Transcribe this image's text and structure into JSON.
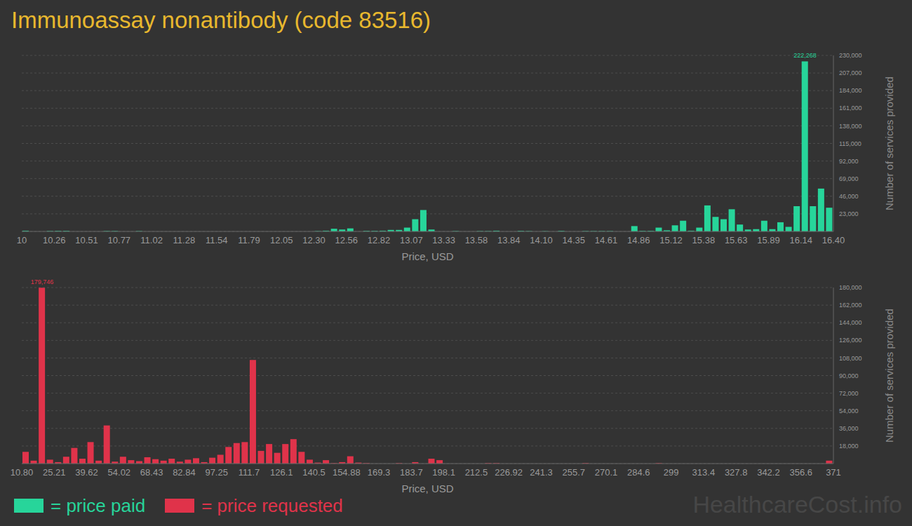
{
  "chart_data": [
    {
      "type": "histogram",
      "title": "Immunoassay nonantibody (code 83516)",
      "x_label": "Price, USD",
      "y_label": "Number of services provided",
      "legend": "bottom left",
      "grid": true,
      "bins": [
        10,
        10.064,
        10.128,
        10.192,
        10.256,
        10.32,
        10.384,
        10.448,
        10.512,
        10.576,
        10.64,
        10.704,
        10.768,
        10.832,
        10.896,
        10.96,
        11.024,
        11.088,
        11.152,
        11.216,
        11.28,
        11.344,
        11.408,
        11.472,
        11.536,
        11.6,
        11.664,
        11.728,
        11.792,
        11.856,
        11.92,
        11.984,
        12.048,
        12.112,
        12.176,
        12.24,
        12.304,
        12.368,
        12.432,
        12.496,
        12.56,
        12.624,
        12.688,
        12.752,
        12.816,
        12.88,
        12.944,
        13.008,
        13.072,
        13.136,
        13.2,
        13.264,
        13.328,
        13.392,
        13.456,
        13.52,
        13.584,
        13.648,
        13.712,
        13.776,
        13.84,
        13.904,
        13.968,
        14.032,
        14.096,
        14.16,
        14.224,
        14.288,
        14.352,
        14.416,
        14.48,
        14.544,
        14.608,
        14.672,
        14.736,
        14.8,
        14.864,
        14.928,
        14.992,
        15.056,
        15.12,
        15.184,
        15.248,
        15.312,
        15.376,
        15.44,
        15.504,
        15.568,
        15.632,
        15.696,
        15.76,
        15.824,
        15.888,
        15.952,
        16.016,
        16.08,
        16.144,
        16.208,
        16.272,
        16.336,
        16.4
      ],
      "series": [
        {
          "name": "= price paid",
          "color": "#27d59a",
          "values": [
            1000,
            0,
            0,
            600,
            800,
            800,
            0,
            0,
            0,
            0,
            600,
            600,
            0,
            0,
            500,
            0,
            0,
            0,
            0,
            0,
            0,
            0,
            0,
            0,
            0,
            0,
            0,
            0,
            0,
            0,
            0,
            0,
            0,
            0,
            0,
            0,
            500,
            1000,
            3500,
            2500,
            4000,
            0,
            800,
            800,
            1000,
            2000,
            2000,
            5000,
            16000,
            28000,
            2500,
            0,
            0,
            500,
            0,
            0,
            500,
            500,
            1000,
            0,
            0,
            800,
            500,
            0,
            400,
            0,
            800,
            0,
            0,
            500,
            500,
            500,
            500,
            0,
            0,
            7000,
            800,
            800,
            5000,
            1500,
            8000,
            14000,
            1000,
            5000,
            34000,
            19000,
            16000,
            29000,
            9000,
            2500,
            3000,
            14000,
            3000,
            12000,
            6000,
            33000,
            222268,
            33000,
            56000,
            31000
          ]
        }
      ],
      "xlim": [
        10,
        16.4
      ],
      "xticks": [
        10,
        {
          "value": 10.256,
          "label": "10.26"
        },
        {
          "value": 10.512,
          "label": "10.51"
        },
        {
          "value": 10.768,
          "label": "10.77"
        },
        {
          "value": 11.024,
          "label": "11.02"
        },
        11.28,
        {
          "value": 11.536,
          "label": "11.54"
        },
        {
          "value": 11.792,
          "label": "11.79"
        },
        {
          "value": 12.048,
          "label": "12.05"
        },
        {
          "value": 12.304,
          "label": "12.30"
        },
        12.56,
        {
          "value": 12.816,
          "label": "12.82"
        },
        {
          "value": 13.072,
          "label": "13.07"
        },
        {
          "value": 13.328,
          "label": "13.33"
        },
        {
          "value": 13.584,
          "label": "13.58"
        },
        13.84,
        {
          "value": 14.096,
          "label": "14.10"
        },
        {
          "value": 14.352,
          "label": "14.35"
        },
        {
          "value": 14.608,
          "label": "14.61"
        },
        {
          "value": 14.864,
          "label": "14.86"
        },
        15.12,
        {
          "value": 15.376,
          "label": "15.38"
        },
        {
          "value": 15.632,
          "label": "15.63"
        },
        {
          "value": 15.888,
          "label": "15.89"
        },
        {
          "value": 16.144,
          "label": "16.14"
        },
        {
          "value": 16.4,
          "label": "16.40"
        }
      ],
      "ylim": [
        0,
        230000
      ],
      "yticks": [
        {
          "value": 23000,
          "label": "23,000"
        },
        {
          "value": 46000,
          "label": "46,000"
        },
        {
          "value": 69000,
          "label": "69,000"
        },
        {
          "value": 92000,
          "label": "92,000"
        },
        {
          "value": 115000,
          "label": "115,000"
        },
        {
          "value": 138000,
          "label": "138,000"
        },
        {
          "value": 161000,
          "label": "161,000"
        },
        {
          "value": 184000,
          "label": "184,000"
        },
        {
          "value": 207000,
          "label": "207,000"
        },
        {
          "value": 230000,
          "label": "230,000"
        }
      ],
      "annotations": [
        {
          "text": "222,268",
          "x": 16.176,
          "y": 222268
        }
      ]
    },
    {
      "type": "histogram",
      "x_label": "Price, USD",
      "y_label": "Number of services provided",
      "legend": "bottom left",
      "grid": true,
      "bins": [
        10.8,
        14.402,
        18.004,
        21.606,
        25.208,
        28.81,
        32.412,
        36.014,
        39.616,
        43.218,
        46.82,
        50.422,
        54.024,
        57.626,
        61.228,
        64.83,
        68.432,
        72.034,
        75.636,
        79.238,
        82.84,
        86.442,
        90.044,
        93.646,
        97.248,
        100.85,
        104.452,
        108.054,
        111.656,
        115.258,
        118.86,
        122.462,
        126.064,
        129.666,
        133.268,
        136.87,
        140.472,
        144.074,
        147.676,
        151.278,
        154.88,
        158.482,
        162.084,
        165.686,
        169.288,
        172.89,
        176.492,
        180.094,
        183.696,
        187.298,
        190.9,
        194.502,
        198.104,
        201.706,
        205.308,
        208.91,
        212.512,
        216.114,
        219.716,
        223.318,
        226.92,
        230.522,
        234.124,
        237.726,
        241.328,
        244.93,
        248.532,
        252.134,
        255.736,
        259.338,
        262.94,
        266.542,
        270.144,
        273.746,
        277.348,
        280.95,
        284.552,
        288.154,
        291.756,
        295.358,
        298.96,
        302.562,
        306.164,
        309.766,
        313.368,
        316.97,
        320.572,
        324.174,
        327.776,
        331.378,
        334.98,
        338.582,
        342.184,
        345.786,
        349.388,
        352.99,
        356.592,
        360.194,
        363.796,
        367.398,
        371
      ],
      "series": [
        {
          "name": "= price requested",
          "color": "#e0334a",
          "values": [
            12000,
            3000,
            179746,
            4000,
            1500,
            7000,
            16000,
            5000,
            22000,
            3000,
            39000,
            2000,
            7000,
            3500,
            2500,
            6500,
            4500,
            3000,
            5000,
            2000,
            4000,
            5500,
            1500,
            6000,
            9000,
            17000,
            21000,
            22000,
            106000,
            13000,
            20000,
            11000,
            20000,
            25000,
            12000,
            4000,
            1000,
            3500,
            500,
            1500,
            7500,
            1000,
            500,
            0,
            0,
            0,
            500,
            0,
            1500,
            0,
            5000,
            3500,
            0,
            0,
            0,
            0,
            0,
            500,
            500,
            0,
            0,
            0,
            0,
            0,
            0,
            0,
            0,
            0,
            0,
            500,
            0,
            0,
            0,
            0,
            0,
            0,
            0,
            0,
            500,
            0,
            0,
            0,
            0,
            0,
            0,
            0,
            0,
            0,
            0,
            0,
            0,
            0,
            0,
            0,
            0,
            0,
            0,
            0,
            0,
            3000
          ]
        }
      ],
      "xlim": [
        10.8,
        371
      ],
      "xticks": [
        {
          "value": 10.8,
          "label": "10.80"
        },
        {
          "value": 25.208,
          "label": "25.21"
        },
        {
          "value": 39.616,
          "label": "39.62"
        },
        {
          "value": 54.024,
          "label": "54.02"
        },
        {
          "value": 68.432,
          "label": "68.43"
        },
        82.84,
        {
          "value": 97.248,
          "label": "97.25"
        },
        {
          "value": 111.656,
          "label": "111.7"
        },
        {
          "value": 126.064,
          "label": "126.1"
        },
        {
          "value": 140.472,
          "label": "140.5"
        },
        154.88,
        {
          "value": 169.288,
          "label": "169.3"
        },
        {
          "value": 183.696,
          "label": "183.7"
        },
        {
          "value": 198.104,
          "label": "198.1"
        },
        {
          "value": 212.512,
          "label": "212.5"
        },
        226.92,
        {
          "value": 241.328,
          "label": "241.3"
        },
        {
          "value": 255.736,
          "label": "255.7"
        },
        {
          "value": 270.144,
          "label": "270.1"
        },
        {
          "value": 284.552,
          "label": "284.6"
        },
        {
          "value": 298.96,
          "label": "299"
        },
        {
          "value": 313.368,
          "label": "313.4"
        },
        {
          "value": 327.776,
          "label": "327.8"
        },
        {
          "value": 342.184,
          "label": "342.2"
        },
        {
          "value": 356.592,
          "label": "356.6"
        },
        371
      ],
      "ylim": [
        0,
        180000
      ],
      "yticks": [
        {
          "value": 18000,
          "label": "18,000"
        },
        {
          "value": 36000,
          "label": "36,000"
        },
        {
          "value": 54000,
          "label": "54,000"
        },
        {
          "value": 72000,
          "label": "72,000"
        },
        {
          "value": 90000,
          "label": "90,000"
        },
        {
          "value": 108000,
          "label": "108,000"
        },
        {
          "value": 126000,
          "label": "126,000"
        },
        {
          "value": 144000,
          "label": "144,000"
        },
        {
          "value": 162000,
          "label": "162,000"
        },
        {
          "value": 180000,
          "label": "180,000"
        }
      ],
      "annotations": [
        {
          "text": "179,746",
          "x": 19.805,
          "y": 179746
        },
        {
          "text": "HealthcareCost.info"
        }
      ]
    }
  ]
}
